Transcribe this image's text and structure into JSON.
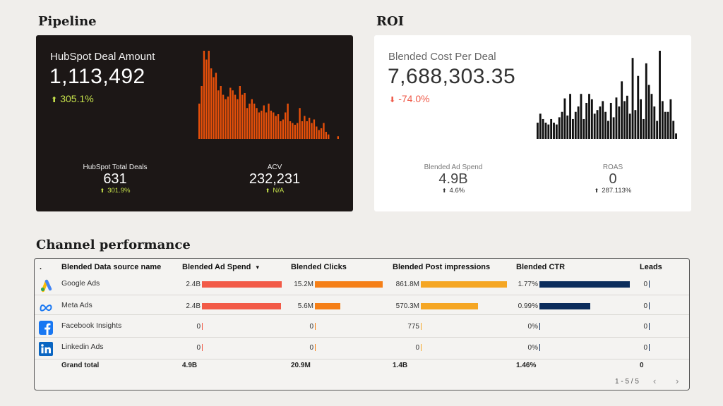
{
  "pipeline": {
    "title": "Pipeline",
    "metric_label": "HubSpot Deal Amount",
    "metric_value": "1,113,492",
    "metric_delta": "305.1%",
    "deals_label": "HubSpot Total Deals",
    "deals_value": "631",
    "deals_delta": "301.9%",
    "acv_label": "ACV",
    "acv_value": "232,231",
    "acv_delta": "N/A",
    "spark_color": "#e8500a",
    "spark_values": [
      40,
      60,
      100,
      90,
      100,
      80,
      70,
      75,
      55,
      60,
      50,
      45,
      48,
      58,
      55,
      50,
      45,
      60,
      50,
      52,
      35,
      40,
      45,
      40,
      35,
      30,
      32,
      38,
      30,
      40,
      32,
      30,
      26,
      28,
      20,
      22,
      30,
      40,
      20,
      18,
      16,
      18,
      35,
      20,
      26,
      20,
      24,
      18,
      22,
      14,
      10,
      12,
      18,
      8,
      5,
      0,
      0,
      0,
      3
    ]
  },
  "roi": {
    "title": "ROI",
    "metric_label": "Blended Cost Per Deal",
    "metric_value": "7,688,303.35",
    "metric_delta": "-74.0%",
    "spend_label": "Blended Ad Spend",
    "spend_value": "4.9B",
    "spend_delta": "4.6%",
    "roas_label": "ROAS",
    "roas_value": "0",
    "roas_delta": "287.113%",
    "spark_color": "#111111",
    "spark_values": [
      18,
      28,
      22,
      18,
      16,
      22,
      18,
      16,
      24,
      30,
      45,
      26,
      50,
      22,
      30,
      36,
      50,
      22,
      40,
      50,
      44,
      28,
      32,
      36,
      42,
      30,
      20,
      40,
      24,
      46,
      36,
      64,
      42,
      48,
      28,
      90,
      32,
      70,
      44,
      22,
      84,
      60,
      50,
      36,
      20,
      98,
      42,
      30,
      30,
      44,
      20,
      6
    ]
  },
  "channel": {
    "title": "Channel performance",
    "columns": [
      "Blended Data source name",
      "Blended Ad Spend",
      "Blended Clicks",
      "Blended Post impressions",
      "Blended CTR",
      "Leads"
    ],
    "index_header": ".",
    "sort_indicator": "▾",
    "rows": [
      {
        "icon": "google-ads-icon",
        "name": "Google Ads",
        "spend": "2.4B",
        "spend_frac": 1.0,
        "clicks": "15.2M",
        "clicks_frac": 1.0,
        "impr": "861.8M",
        "impr_frac": 1.0,
        "ctr": "1.77%",
        "ctr_frac": 1.0,
        "leads": "0"
      },
      {
        "icon": "meta-icon",
        "name": "Meta Ads",
        "spend": "2.4B",
        "spend_frac": 0.99,
        "clicks": "5.6M",
        "clicks_frac": 0.37,
        "impr": "570.3M",
        "impr_frac": 0.66,
        "ctr": "0.99%",
        "ctr_frac": 0.56,
        "leads": "0"
      },
      {
        "icon": "facebook-icon",
        "name": "Facebook Insights",
        "spend": "0",
        "spend_frac": 0,
        "clicks": "0",
        "clicks_frac": 0,
        "impr": "775",
        "impr_frac": 0,
        "ctr": "0%",
        "ctr_frac": 0,
        "leads": "0"
      },
      {
        "icon": "linkedin-icon",
        "name": "Linkedin Ads",
        "spend": "0",
        "spend_frac": 0,
        "clicks": "0",
        "clicks_frac": 0,
        "impr": "0",
        "impr_frac": 0,
        "ctr": "0%",
        "ctr_frac": 0,
        "leads": "0"
      }
    ],
    "grand_total": {
      "label": "Grand total",
      "spend": "4.9B",
      "clicks": "20.9M",
      "impr": "1.4B",
      "ctr": "1.46%",
      "leads": "0"
    },
    "pager": "1 - 5 / 5",
    "colors": {
      "spend": "#f25a47",
      "clicks": "#f57f17",
      "impr": "#f5a623",
      "ctr": "#0c2d5c",
      "leads": "#0c2d5c"
    }
  },
  "colors": {
    "positive_dark": "#c6e24b",
    "positive_light": "#222222",
    "negative": "#ef5b4a"
  }
}
